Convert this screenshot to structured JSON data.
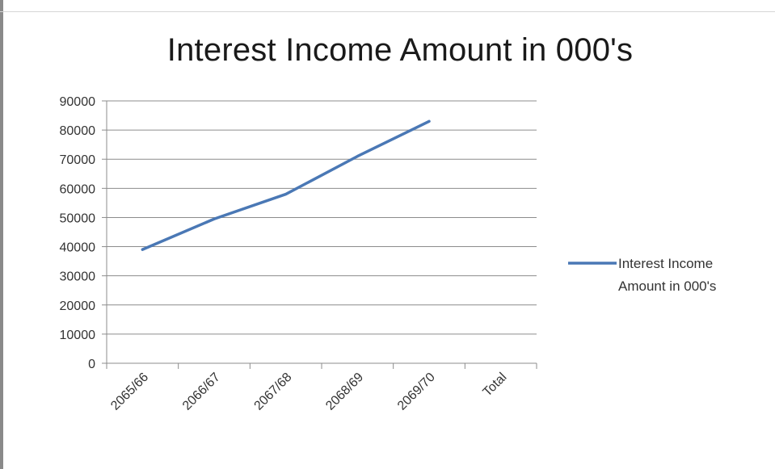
{
  "chart_data": {
    "type": "line",
    "title": "Interest Income Amount in 000's",
    "categories": [
      "2065/66",
      "2066/67",
      "2067/68",
      "2068/69",
      "2069/70",
      "Total"
    ],
    "series": [
      {
        "name": "Interest Income Amount in 000's",
        "values": [
          39000,
          49500,
          58000,
          71000,
          83000,
          null
        ]
      }
    ],
    "y_ticks": [
      "0",
      "10000",
      "20000",
      "30000",
      "40000",
      "50000",
      "60000",
      "70000",
      "80000",
      "90000"
    ],
    "ylim": [
      0,
      90000
    ],
    "grid": "horizontal",
    "legend": {
      "placement": "right",
      "lines": [
        "Interest Income",
        "Amount in 000's"
      ]
    },
    "colors": {
      "series": "#4a78b5",
      "grid": "#8c8c8c",
      "axis": "#8c8c8c"
    }
  }
}
